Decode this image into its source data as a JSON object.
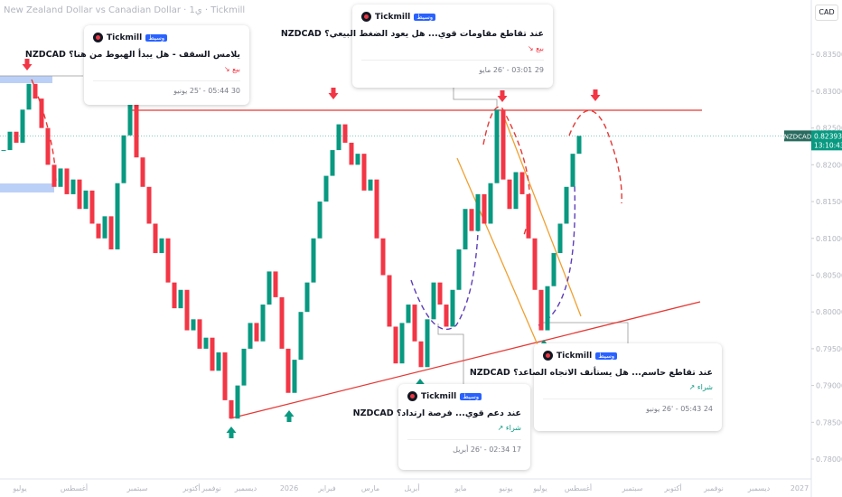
{
  "header": {
    "symbol_title": "New Zealand Dollar vs Canadian Dollar · 1ي · Tickmill",
    "currency": "CAD"
  },
  "price_axis": {
    "ylim": [
      0.7773,
      0.8424
    ],
    "ticks": [
      {
        "value": 0.835,
        "label": "0.83500"
      },
      {
        "value": 0.83,
        "label": "0.83000"
      },
      {
        "value": 0.825,
        "label": "0.82500"
      },
      {
        "value": 0.82,
        "label": "0.82000"
      },
      {
        "value": 0.815,
        "label": "0.81500"
      },
      {
        "value": 0.81,
        "label": "0.81000"
      },
      {
        "value": 0.805,
        "label": "0.80500"
      },
      {
        "value": 0.8,
        "label": "0.80000"
      },
      {
        "value": 0.795,
        "label": "0.79500"
      },
      {
        "value": 0.79,
        "label": "0.79000"
      },
      {
        "value": 0.785,
        "label": "0.78500"
      },
      {
        "value": 0.78,
        "label": "0.78000"
      }
    ]
  },
  "current_price": {
    "symbol": "NZDCAD",
    "price": 0.82393,
    "countdown": "13:10:43"
  },
  "time_axis": {
    "labels": [
      "يوليو",
      "أغسطس",
      "سبتمبر",
      "أكتوبر",
      "نوفمبر",
      "ديسمبر",
      "2026",
      "فبراير",
      "مارس",
      "أبريل",
      "مايو",
      "يونيو",
      "يوليو",
      "أغسطس",
      "سبتمبر",
      "أكتوبر",
      "نوفمبر",
      "ديسمبر",
      "2027"
    ]
  },
  "series": {
    "closes": [
      0.822,
      0.8245,
      0.823,
      0.8275,
      0.831,
      0.829,
      0.825,
      0.82,
      0.817,
      0.8195,
      0.816,
      0.818,
      0.814,
      0.8165,
      0.812,
      0.81,
      0.813,
      0.8085,
      0.8175,
      0.824,
      0.8285,
      0.821,
      0.817,
      0.812,
      0.808,
      0.81,
      0.804,
      0.8005,
      0.803,
      0.7975,
      0.799,
      0.795,
      0.7965,
      0.792,
      0.7945,
      0.788,
      0.7855,
      0.79,
      0.795,
      0.7985,
      0.796,
      0.801,
      0.8055,
      0.802,
      0.795,
      0.789,
      0.7935,
      0.8,
      0.804,
      0.81,
      0.815,
      0.8185,
      0.822,
      0.8255,
      0.823,
      0.82,
      0.8215,
      0.8165,
      0.818,
      0.81,
      0.805,
      0.798,
      0.793,
      0.7985,
      0.801,
      0.796,
      0.7925,
      0.799,
      0.804,
      0.801,
      0.798,
      0.803,
      0.8085,
      0.814,
      0.811,
      0.816,
      0.812,
      0.8175,
      0.8275,
      0.818,
      0.814,
      0.819,
      0.816,
      0.81,
      0.803,
      0.7975,
      0.8035,
      0.808,
      0.812,
      0.817,
      0.8215,
      0.82393
    ]
  },
  "ideas": [
    {
      "author": "Tickmill",
      "badge": "وسيط",
      "title": "يلامس السقف - هل يبدأ الهبوط من هنا؟ NZDCAD",
      "signal": "بيع ↘",
      "date": "30 05:44 - '25 يونيو"
    },
    {
      "author": "Tickmill",
      "badge": "وسيط",
      "title": "عند تقاطع مقاومات قوي... هل يعود الضغط البيعي؟ NZDCAD",
      "signal": "بيع ↘",
      "date": "29 03:01 - '26 مايو"
    },
    {
      "author": "Tickmill",
      "badge": "وسيط",
      "title": "عند دعم قوي... فرصة ارتداد؟ NZDCAD",
      "signal": "شراء ↗",
      "date": "17 02:34 - '26 أبريل"
    },
    {
      "author": "Tickmill",
      "badge": "وسيط",
      "title": "عند تقاطع حاسم... هل يستأنف الاتجاه الصاعد؟ NZDCAD",
      "signal": "شراء ↗",
      "date": "24 05:43 - '26 يونيو"
    }
  ]
}
